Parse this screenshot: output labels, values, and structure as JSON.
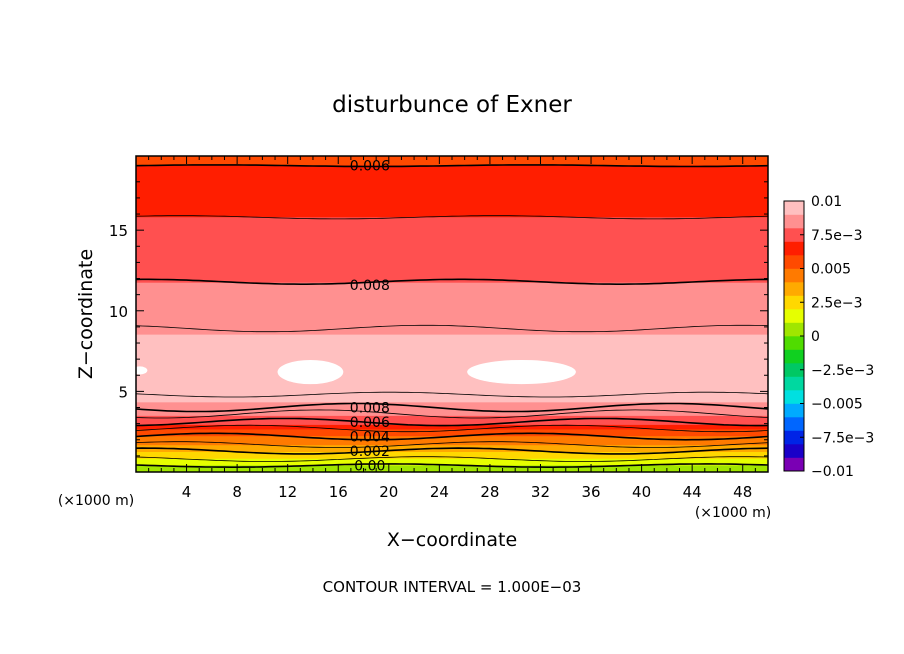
{
  "chart_data": {
    "type": "heatmap",
    "title": "disturbunce of Exner",
    "xlabel": "X−coordinate",
    "ylabel": "Z−coordinate",
    "x_unit_left": "(×1000 m)",
    "x_unit_right": "(×1000 m)",
    "footer": "CONTOUR INTERVAL = 1.000E−03",
    "xlim": [
      0,
      50
    ],
    "ylim": [
      0,
      19.6
    ],
    "x_ticks": [
      4,
      8,
      12,
      16,
      20,
      24,
      28,
      32,
      36,
      40,
      44,
      48
    ],
    "x_tick_labels": [
      "4",
      "8",
      "12",
      "16",
      "20",
      "24",
      "28",
      "32",
      "36",
      "40",
      "44",
      "48"
    ],
    "y_ticks": [
      5,
      10,
      15
    ],
    "y_tick_labels": [
      "5",
      "10",
      "15"
    ],
    "colorbar": {
      "tick_labels": [
        "0.01",
        "7.5e−3",
        "0.005",
        "2.5e−3",
        "0",
        "−2.5e−3",
        "−0.005",
        "−7.5e−3",
        "−0.01"
      ],
      "tick_values": [
        0.01,
        0.0075,
        0.005,
        0.0025,
        0,
        -0.0025,
        -0.005,
        -0.0075,
        -0.01
      ],
      "colors": [
        "#7a00b4",
        "#1a00c8",
        "#0024e6",
        "#0066ff",
        "#00aaff",
        "#00e0e0",
        "#00d8a0",
        "#00c864",
        "#10d020",
        "#50dc00",
        "#a0e600",
        "#e6ff00",
        "#ffd800",
        "#ffaa00",
        "#ff7a00",
        "#ff4a00",
        "#ff1e00",
        "#ff5050",
        "#ff9090",
        "#ffc0c0"
      ]
    },
    "profile": [
      {
        "z": 0,
        "value": 0.0
      },
      {
        "z": 0.6,
        "value": 0.0015
      },
      {
        "z": 1.2,
        "value": 0.003
      },
      {
        "z": 2.0,
        "value": 0.0045
      },
      {
        "z": 2.6,
        "value": 0.006
      },
      {
        "z": 3.2,
        "value": 0.0075
      },
      {
        "z": 3.6,
        "value": 0.0083
      },
      {
        "z": 4.0,
        "value": 0.0088
      },
      {
        "z": 4.8,
        "value": 0.0093
      },
      {
        "z": 5.8,
        "value": 0.0097
      },
      {
        "z": 6.4,
        "value": 0.0099
      },
      {
        "z": 7.2,
        "value": 0.0097
      },
      {
        "z": 8.0,
        "value": 0.0093
      },
      {
        "z": 9.0,
        "value": 0.0088
      },
      {
        "z": 10.5,
        "value": 0.0084
      },
      {
        "z": 11.8,
        "value": 0.008
      },
      {
        "z": 13.0,
        "value": 0.0077
      },
      {
        "z": 15.0,
        "value": 0.0073
      },
      {
        "z": 15.8,
        "value": 0.007
      },
      {
        "z": 17.0,
        "value": 0.0066
      },
      {
        "z": 18.0,
        "value": 0.0063
      },
      {
        "z": 19.0,
        "value": 0.006
      },
      {
        "z": 19.6,
        "value": 0.0058
      }
    ],
    "contour_labels": [
      {
        "text": "0.006",
        "x": 18.5,
        "z": 19.0
      },
      {
        "text": "0.008",
        "x": 18.5,
        "z": 11.6
      },
      {
        "text": "0.008",
        "x": 18.5,
        "z": 4.0
      },
      {
        "text": "0.006",
        "x": 18.5,
        "z": 3.1
      },
      {
        "text": "0.004",
        "x": 18.5,
        "z": 2.2
      },
      {
        "text": "0.002",
        "x": 18.5,
        "z": 1.3
      },
      {
        "text": "0.00",
        "x": 18.5,
        "z": 0.4
      }
    ],
    "contour_levels": [
      {
        "z": 19.0,
        "amp": 0.05,
        "bold": true
      },
      {
        "z": 15.8,
        "amp": 0.1,
        "bold": false
      },
      {
        "z": 11.8,
        "amp": 0.15,
        "bold": true
      },
      {
        "z": 8.9,
        "amp": 0.2,
        "bold": false
      },
      {
        "z": 4.8,
        "amp": 0.15,
        "bold": false
      },
      {
        "z": 4.0,
        "amp": 0.25,
        "bold": true
      },
      {
        "z": 3.6,
        "amp": 0.25,
        "bold": false
      },
      {
        "z": 3.1,
        "amp": 0.22,
        "bold": true
      },
      {
        "z": 2.7,
        "amp": 0.2,
        "bold": false
      },
      {
        "z": 2.2,
        "amp": 0.2,
        "bold": true
      },
      {
        "z": 1.7,
        "amp": 0.18,
        "bold": false
      },
      {
        "z": 1.3,
        "amp": 0.18,
        "bold": true
      },
      {
        "z": 0.8,
        "amp": 0.15,
        "bold": false
      },
      {
        "z": 0.4,
        "amp": 0.1,
        "bold": true
      }
    ],
    "max_regions": [
      {
        "x_center": 13.8,
        "z_center": 6.2,
        "x_halfwidth": 2.6,
        "z_halfheight": 0.75
      },
      {
        "x_center": 30.5,
        "z_center": 6.2,
        "x_halfwidth": 4.3,
        "z_halfheight": 0.75
      },
      {
        "x_center": 0.3,
        "z_center": 6.3,
        "x_halfwidth": 0.6,
        "z_halfheight": 0.25
      }
    ]
  }
}
